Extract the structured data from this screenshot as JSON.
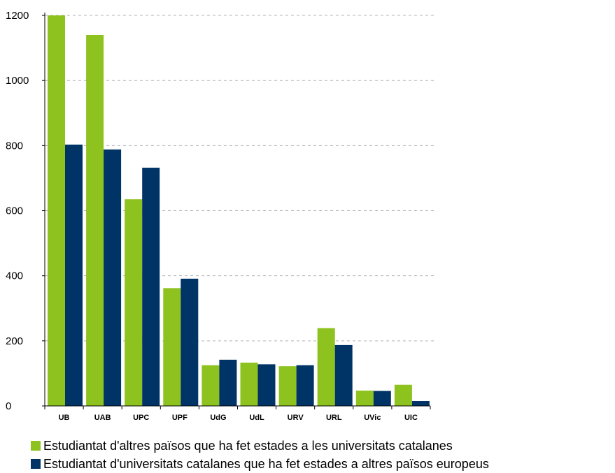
{
  "chart_data": {
    "type": "bar",
    "title": "",
    "xlabel": "",
    "ylabel": "",
    "categories": [
      "UB",
      "UAB",
      "UPC",
      "UPF",
      "UdG",
      "UdL",
      "URV",
      "URL",
      "UVic",
      "UIC"
    ],
    "series": [
      {
        "name": "Estudiantat d'altres països que ha fet estades a les universitats catalanes",
        "color": "#8DC21F",
        "values": [
          1210,
          1140,
          635,
          362,
          125,
          133,
          122,
          239,
          47,
          65
        ]
      },
      {
        "name": "Estudiantat d'universitats catalanes que ha fet estades a altres països europeus",
        "color": "#003366",
        "values": [
          803,
          788,
          732,
          391,
          142,
          128,
          125,
          187,
          46,
          15
        ]
      }
    ],
    "ylim": [
      0,
      1200
    ],
    "yticks": [
      0,
      200,
      400,
      600,
      800,
      1000,
      1200
    ],
    "grid": true,
    "legend_position": "bottom"
  }
}
